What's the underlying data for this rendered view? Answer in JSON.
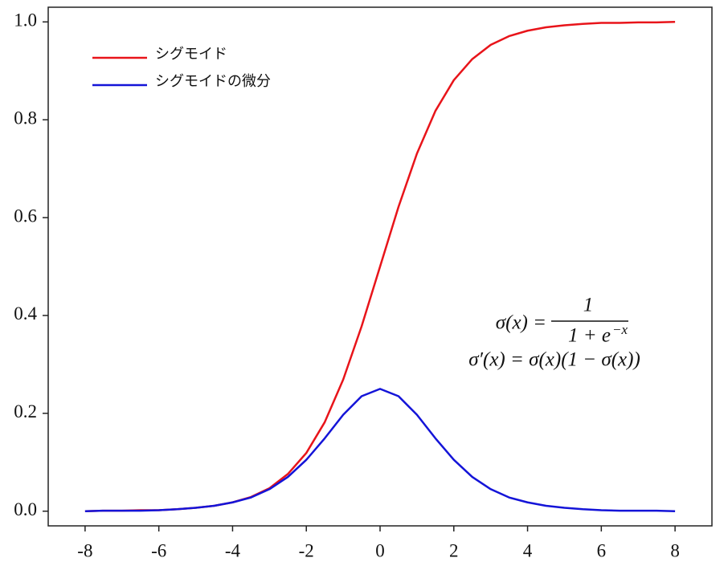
{
  "chart_data": {
    "type": "line",
    "x": [
      -8,
      -7.5,
      -7,
      -6.5,
      -6,
      -5.5,
      -5,
      -4.5,
      -4,
      -3.5,
      -3,
      -2.5,
      -2,
      -1.5,
      -1,
      -0.5,
      0,
      0.5,
      1,
      1.5,
      2,
      2.5,
      3,
      3.5,
      4,
      4.5,
      5,
      5.5,
      6,
      6.5,
      7,
      7.5,
      8
    ],
    "series": [
      {
        "name": "シグモイド",
        "color": "#e8141a",
        "values": [
          0.0,
          0.001,
          0.001,
          0.002,
          0.002,
          0.004,
          0.007,
          0.011,
          0.018,
          0.029,
          0.047,
          0.076,
          0.119,
          0.182,
          0.269,
          0.378,
          0.5,
          0.622,
          0.731,
          0.818,
          0.881,
          0.924,
          0.953,
          0.971,
          0.982,
          0.989,
          0.993,
          0.996,
          0.998,
          0.998,
          0.999,
          0.999,
          1.0
        ]
      },
      {
        "name": "シグモイドの微分",
        "color": "#1414d8",
        "values": [
          0.0,
          0.001,
          0.001,
          0.001,
          0.002,
          0.004,
          0.007,
          0.011,
          0.018,
          0.028,
          0.045,
          0.07,
          0.105,
          0.149,
          0.197,
          0.235,
          0.25,
          0.235,
          0.197,
          0.149,
          0.105,
          0.07,
          0.045,
          0.028,
          0.018,
          0.011,
          0.007,
          0.004,
          0.002,
          0.001,
          0.001,
          0.001,
          0.0
        ]
      }
    ],
    "xlim": [
      -9,
      9
    ],
    "xticks": [
      -8,
      -6,
      -4,
      -2,
      0,
      2,
      4,
      6,
      8
    ],
    "ylim": [
      -0.03,
      1.03
    ],
    "yticks": [
      {
        "value": 0,
        "label": "0.0"
      },
      {
        "value": 0.2,
        "label": "0.2"
      },
      {
        "value": 0.4,
        "label": "0.4"
      },
      {
        "value": 0.6,
        "label": "0.6"
      },
      {
        "value": 0.8,
        "label": "0.8"
      },
      {
        "value": 1.0,
        "label": "1.0"
      }
    ],
    "legend": "upper-left",
    "annotations": [
      "σ(x) =",
      "1",
      "1 + e",
      "−x",
      "σ′(x) = σ(x)(1 − σ(x))"
    ]
  }
}
